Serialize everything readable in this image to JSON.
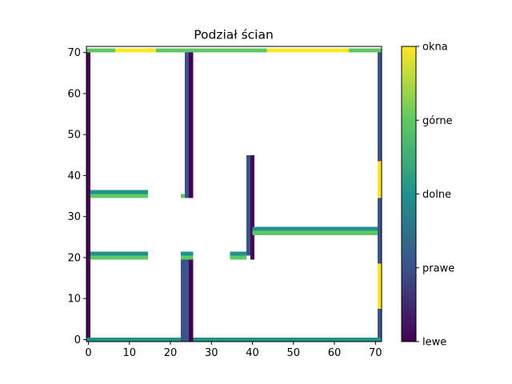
{
  "chart_data": {
    "type": "heatmap",
    "title": "Podział ścian",
    "xlabel": "",
    "ylabel": "",
    "xlim": [
      -0.5,
      71.5
    ],
    "ylim": [
      -0.5,
      71.5
    ],
    "x_ticks": [
      0,
      10,
      20,
      30,
      40,
      50,
      60,
      70
    ],
    "y_ticks": [
      0,
      10,
      20,
      30,
      40,
      50,
      60,
      70
    ],
    "grid": false,
    "colorbar": {
      "vmin": 0,
      "vmax": 4,
      "ticks": [
        {
          "value": 0,
          "label": "lewe"
        },
        {
          "value": 1,
          "label": "prawe"
        },
        {
          "value": 2,
          "label": "dolne"
        },
        {
          "value": 3,
          "label": "górne"
        },
        {
          "value": 4,
          "label": "okna"
        }
      ]
    },
    "colors": {
      "lewe": "#440154",
      "prawe": "#3b528b",
      "dolne": "#21918c",
      "górne": "#5ec962",
      "okna": "#fde725"
    },
    "cells": [
      {
        "x": [
          0,
          1
        ],
        "y": [
          0,
          71
        ],
        "value": 0
      },
      {
        "x": [
          0,
          24
        ],
        "y": [
          0,
          1
        ],
        "value": 2
      },
      {
        "x": [
          25,
          72
        ],
        "y": [
          0,
          1
        ],
        "value": 2
      },
      {
        "x": [
          0,
          7
        ],
        "y": [
          70.5,
          71.5
        ],
        "value": 3
      },
      {
        "x": [
          7,
          17
        ],
        "y": [
          70.5,
          71.5
        ],
        "value": 4
      },
      {
        "x": [
          17,
          44
        ],
        "y": [
          70.5,
          71.5
        ],
        "value": 3
      },
      {
        "x": [
          44,
          64
        ],
        "y": [
          70.5,
          71.5
        ],
        "value": 4
      },
      {
        "x": [
          64,
          72
        ],
        "y": [
          70.5,
          71.5
        ],
        "value": 3
      },
      {
        "x": [
          71,
          72
        ],
        "y": [
          1,
          8
        ],
        "value": 1
      },
      {
        "x": [
          71,
          72
        ],
        "y": [
          8,
          19
        ],
        "value": 4
      },
      {
        "x": [
          71,
          72
        ],
        "y": [
          19,
          35
        ],
        "value": 1
      },
      {
        "x": [
          71,
          72
        ],
        "y": [
          35,
          44
        ],
        "value": 4
      },
      {
        "x": [
          71,
          72
        ],
        "y": [
          44,
          70.5
        ],
        "value": 1
      },
      {
        "x": [
          23,
          24
        ],
        "y": [
          0,
          21
        ],
        "value": 1
      },
      {
        "x": [
          24,
          25
        ],
        "y": [
          0,
          21
        ],
        "value": 1
      },
      {
        "x": [
          25,
          26
        ],
        "y": [
          0,
          21
        ],
        "value": 0
      },
      {
        "x": [
          23,
          24
        ],
        "y": [
          35,
          36
        ],
        "value": 1
      },
      {
        "x": [
          24,
          25
        ],
        "y": [
          35,
          70.5
        ],
        "value": 1
      },
      {
        "x": [
          25,
          26
        ],
        "y": [
          35,
          70.5
        ],
        "value": 0
      },
      {
        "x": [
          1,
          15
        ],
        "y": [
          20,
          21
        ],
        "value": 3
      },
      {
        "x": [
          1,
          15
        ],
        "y": [
          21,
          22
        ],
        "value": 2
      },
      {
        "x": [
          1,
          15
        ],
        "y": [
          35,
          36
        ],
        "value": 3
      },
      {
        "x": [
          1,
          15
        ],
        "y": [
          36,
          37
        ],
        "value": 2
      },
      {
        "x": [
          23,
          24
        ],
        "y": [
          20,
          21
        ],
        "value": 3
      },
      {
        "x": [
          24,
          26
        ],
        "y": [
          20,
          21
        ],
        "value": 3
      },
      {
        "x": [
          23,
          26
        ],
        "y": [
          21,
          22
        ],
        "value": 2
      },
      {
        "x": [
          23,
          24
        ],
        "y": [
          35,
          36
        ],
        "value": 3
      },
      {
        "x": [
          35,
          39
        ],
        "y": [
          20,
          21
        ],
        "value": 3
      },
      {
        "x": [
          35,
          39
        ],
        "y": [
          21,
          22
        ],
        "value": 2
      },
      {
        "x": [
          39,
          40
        ],
        "y": [
          21,
          45.5
        ],
        "value": 1
      },
      {
        "x": [
          40,
          41
        ],
        "y": [
          20,
          45.5
        ],
        "value": 0
      },
      {
        "x": [
          40.5,
          71
        ],
        "y": [
          26,
          27
        ],
        "value": 3
      },
      {
        "x": [
          40.5,
          71
        ],
        "y": [
          27,
          28
        ],
        "value": 2
      }
    ]
  }
}
